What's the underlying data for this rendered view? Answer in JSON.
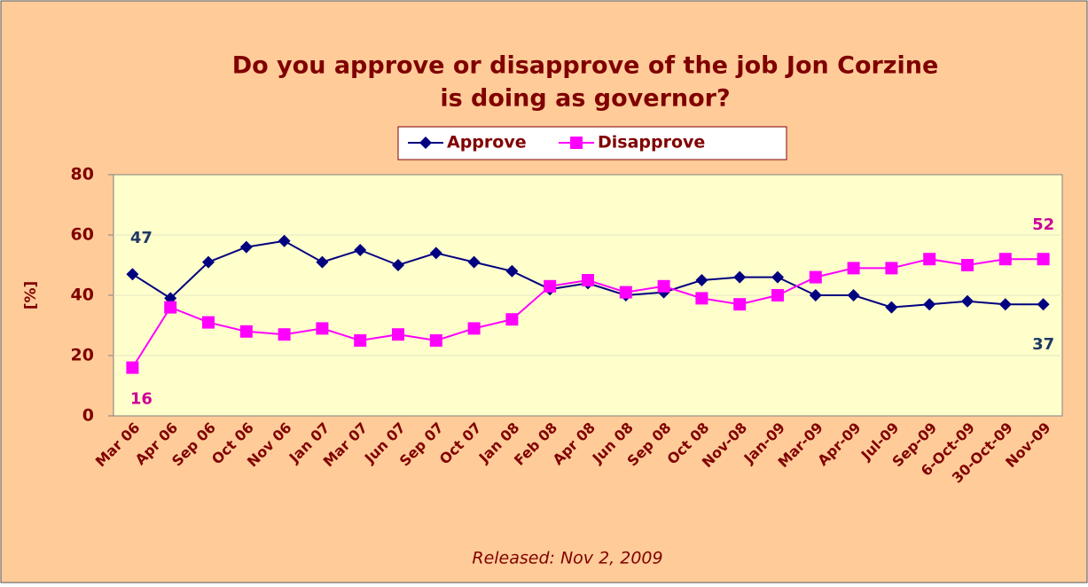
{
  "chart_data": {
    "type": "line",
    "title": [
      "Do you approve or disapprove of the job Jon Corzine",
      "is doing as governor?"
    ],
    "y_label": "[%]",
    "footer": "Released: Nov 2, 2009",
    "categories": [
      "Mar 06",
      "Apr 06",
      "Sep 06",
      "Oct 06",
      "Nov 06",
      "Jan 07",
      "Mar 07",
      "Jun 07",
      "Sep 07",
      "Oct 07",
      "Jan 08",
      "Feb 08",
      "Apr 08",
      "Jun 08",
      "Sep 08",
      "Oct 08",
      "Nov-08",
      "Jan-09",
      "Mar-09",
      "Apr-09",
      "Jul-09",
      "Sep-09",
      "6-Oct-09",
      "30-Oct-09",
      "Nov-09"
    ],
    "series": [
      {
        "name": "Approve",
        "color": "#000080",
        "marker": "diamond",
        "values": [
          47,
          39,
          51,
          56,
          58,
          51,
          55,
          50,
          54,
          51,
          48,
          42,
          44,
          40,
          41,
          45,
          46,
          46,
          40,
          40,
          36,
          37,
          38,
          37,
          37
        ]
      },
      {
        "name": "Disapprove",
        "color": "#FF00FF",
        "marker": "square",
        "values": [
          16,
          36,
          31,
          28,
          27,
          29,
          25,
          27,
          25,
          29,
          32,
          43,
          45,
          41,
          43,
          39,
          37,
          40,
          46,
          49,
          49,
          52,
          50,
          52,
          52
        ]
      }
    ],
    "ylim": [
      0,
      80
    ],
    "yticks": [
      0,
      20,
      40,
      60,
      80
    ],
    "grid": true
  }
}
